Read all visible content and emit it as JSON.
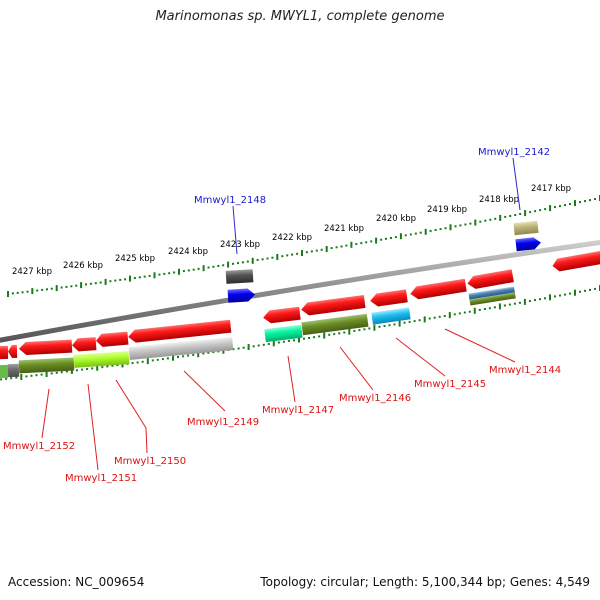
{
  "title": "Marinomonas sp. MWYL1, complete genome",
  "footer": {
    "accession": "Accession: NC_009654",
    "summary": "Topology: circular; Length: 5,100,344 bp; Genes: 4,549"
  },
  "scale_ticks": [
    "2427 kbp",
    "2426 kbp",
    "2425 kbp",
    "2424 kbp",
    "2423 kbp",
    "2422 kbp",
    "2421 kbp",
    "2420 kbp",
    "2419 kbp",
    "2418 kbp",
    "2417 kbp"
  ],
  "forward_gene_labels": [
    "Mmwyl1_2148",
    "Mmwyl1_2142"
  ],
  "reverse_gene_labels": [
    "Mmwyl1_2152",
    "Mmwyl1_2151",
    "Mmwyl1_2150",
    "Mmwyl1_2149",
    "Mmwyl1_2147",
    "Mmwyl1_2146",
    "Mmwyl1_2145",
    "Mmwyl1_2144"
  ],
  "colors": {
    "forward_label": "#1a1acc",
    "reverse_label": "#dd1111",
    "gene_red": "#ee1111",
    "tick_green": "#1b7a1b",
    "backbone": "#8a8a8a"
  }
}
